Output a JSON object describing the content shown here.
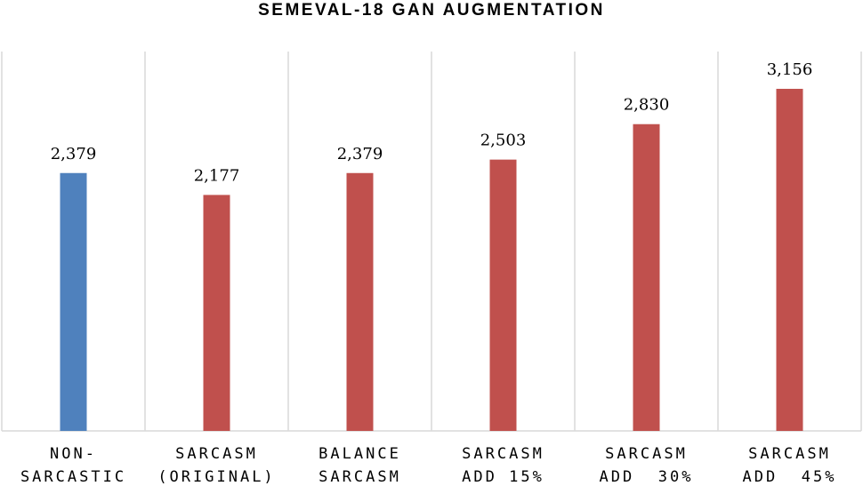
{
  "chart_data": {
    "type": "bar",
    "title": "SEMEVAL-18 GAN AUGMENTATION",
    "xlabel": "",
    "ylabel": "",
    "ylim": [
      0,
      3500
    ],
    "grid": "vertical separators",
    "legend": "none",
    "categories": [
      [
        "NON-",
        "SARCASTIC"
      ],
      [
        "SARCASM",
        "(ORIGINAL)"
      ],
      [
        "BALANCE",
        "SARCASM"
      ],
      [
        "SARCASM",
        "ADD 15%"
      ],
      [
        "SARCASM",
        "ADD  30%"
      ],
      [
        "SARCASM",
        "ADD  45%"
      ]
    ],
    "values": [
      2379,
      2177,
      2379,
      2503,
      2830,
      3156
    ],
    "value_labels": [
      "2,379",
      "2,177",
      "2,379",
      "2,503",
      "2,830",
      "3,156"
    ],
    "colors": [
      "#4f81bd",
      "#c0504d",
      "#c0504d",
      "#c0504d",
      "#c0504d",
      "#c0504d"
    ]
  }
}
